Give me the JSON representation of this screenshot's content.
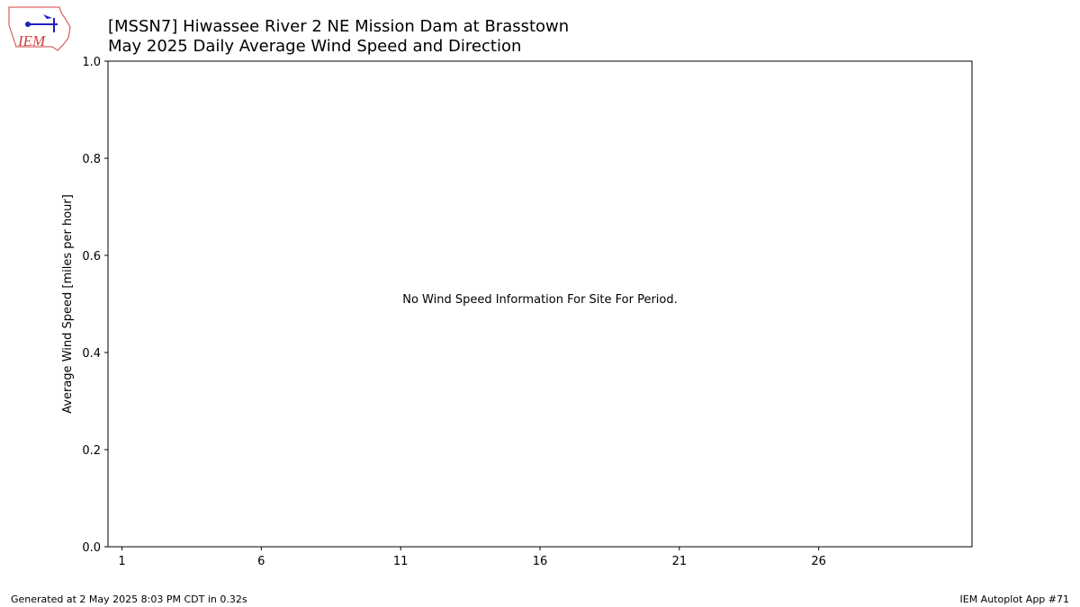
{
  "logo_text": "IEM",
  "chart_data": {
    "type": "bar",
    "title": "[MSSN7] Hiwassee River 2 NE Mission Dam at Brasstown",
    "subtitle": "May 2025 Daily Average Wind Speed and Direction",
    "y_label": "Average Wind Speed [miles per hour]",
    "annotation": "No Wind Speed Information For Site For Period.",
    "xlim": [
      0.5,
      31.5
    ],
    "xticks": [
      1,
      6,
      11,
      16,
      21,
      26
    ],
    "ylim": [
      0,
      1
    ],
    "yticks": [
      {
        "value": 0,
        "label": "0.0"
      },
      0.2,
      0.4,
      0.6,
      0.8,
      {
        "value": 1,
        "label": "1.0"
      }
    ],
    "grid": false
  },
  "footer": {
    "left": "Generated at 2 May 2025 8:03 PM CDT in 0.32s",
    "right": "IEM Autoplot App #71"
  }
}
